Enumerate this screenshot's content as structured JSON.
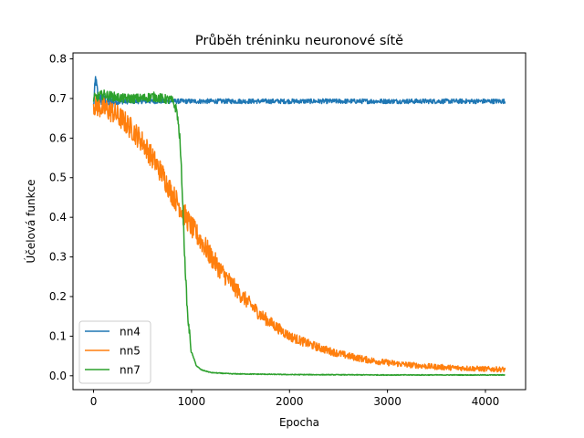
{
  "chart_data": {
    "type": "line",
    "title": "Průběh tréninku neuronové sítě",
    "xlabel": "Epocha",
    "ylabel": "Účelová funkce",
    "xlim": [
      -210,
      4410
    ],
    "ylim": [
      -0.035,
      0.815
    ],
    "xticks": [
      0,
      1000,
      2000,
      3000,
      4000
    ],
    "xtick_labels": [
      "0",
      "1000",
      "2000",
      "3000",
      "4000"
    ],
    "yticks": [
      0.0,
      0.1,
      0.2,
      0.3,
      0.4,
      0.5,
      0.6,
      0.7,
      0.8
    ],
    "ytick_labels": [
      "0.0",
      "0.1",
      "0.2",
      "0.3",
      "0.4",
      "0.5",
      "0.6",
      "0.7",
      "0.8"
    ],
    "grid": false,
    "legend_position": "lower-left",
    "series": [
      {
        "name": "nn4",
        "color": "#1f77b4",
        "noise": 0.006,
        "x": [
          0,
          20,
          50,
          100,
          200,
          300,
          500,
          1000,
          2000,
          3000,
          4000,
          4200
        ],
        "y": [
          0.68,
          0.75,
          0.7,
          0.695,
          0.69,
          0.692,
          0.693,
          0.693,
          0.693,
          0.693,
          0.693,
          0.693
        ]
      },
      {
        "name": "nn5",
        "color": "#ff7f0e",
        "noise": 0.018,
        "x": [
          0,
          100,
          200,
          300,
          400,
          500,
          600,
          700,
          800,
          900,
          1000,
          1100,
          1200,
          1300,
          1400,
          1500,
          1600,
          1700,
          1800,
          2000,
          2200,
          2400,
          2600,
          2800,
          3000,
          3200,
          3400,
          3600,
          3800,
          4000,
          4200
        ],
        "y": [
          0.685,
          0.675,
          0.665,
          0.645,
          0.62,
          0.59,
          0.55,
          0.51,
          0.46,
          0.42,
          0.375,
          0.34,
          0.3,
          0.265,
          0.235,
          0.205,
          0.18,
          0.155,
          0.135,
          0.1,
          0.08,
          0.063,
          0.05,
          0.04,
          0.033,
          0.028,
          0.024,
          0.021,
          0.019,
          0.017,
          0.016
        ]
      },
      {
        "name": "nn7",
        "color": "#2ca02c",
        "noise": 0.012,
        "x": [
          0,
          100,
          200,
          300,
          400,
          500,
          600,
          700,
          800,
          850,
          880,
          900,
          930,
          960,
          1000,
          1050,
          1100,
          1200,
          1400,
          1700,
          2000,
          3000,
          4000,
          4200
        ],
        "y": [
          0.7,
          0.71,
          0.705,
          0.7,
          0.7,
          0.7,
          0.705,
          0.7,
          0.695,
          0.67,
          0.6,
          0.5,
          0.3,
          0.15,
          0.06,
          0.025,
          0.015,
          0.008,
          0.005,
          0.004,
          0.003,
          0.002,
          0.002,
          0.002
        ]
      }
    ]
  }
}
